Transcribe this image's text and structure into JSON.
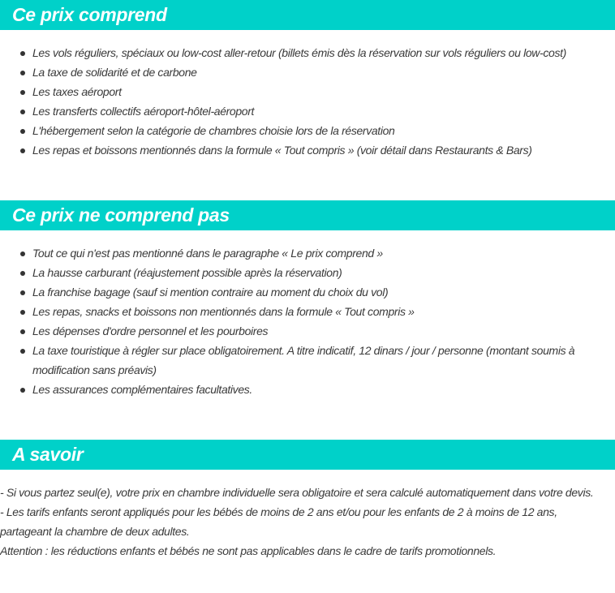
{
  "sections": [
    {
      "title": "Ce prix comprend",
      "items": [
        "Les vols réguliers, spéciaux ou low-cost aller-retour (billets émis dès la réservation sur vols réguliers ou low-cost)",
        "La taxe de solidarité et de carbone",
        "Les taxes aéroport",
        "Les transferts collectifs aéroport-hôtel-aéroport",
        "L'hébergement selon la catégorie de chambres choisie lors de la réservation",
        "Les repas et boissons mentionnés dans la formule « Tout compris » (voir détail dans Restaurants & Bars)"
      ]
    },
    {
      "title": "Ce prix ne comprend pas",
      "items": [
        "Tout ce qui n'est pas mentionné dans le paragraphe « Le prix comprend »",
        "La hausse carburant (réajustement possible après la réservation)",
        "La franchise bagage (sauf si mention contraire au moment du choix du vol)",
        "Les repas, snacks et boissons non mentionnés dans la formule « Tout compris »",
        "Les dépenses d'ordre personnel et les pourboires",
        "La taxe touristique à régler sur place obligatoirement. A titre indicatif, 12 dinars / jour / personne (montant soumis à modification sans préavis)",
        "Les assurances complémentaires facultatives."
      ]
    },
    {
      "title": "A savoir",
      "lines": [
        "- Si vous partez seul(e), votre prix en chambre individuelle sera obligatoire et sera calculé automatiquement dans votre devis.",
        "- Les tarifs enfants seront appliqués pour les bébés de moins de 2 ans et/ou pour les enfants de 2 à moins de 12 ans, partageant la chambre de deux adultes.",
        "Attention : les réductions enfants et bébés ne sont pas applicables dans le cadre de tarifs promotionnels."
      ]
    }
  ],
  "colors": {
    "header_bg": "#00d1c9",
    "header_text": "#ffffff",
    "body_text": "#3a3a3a"
  }
}
